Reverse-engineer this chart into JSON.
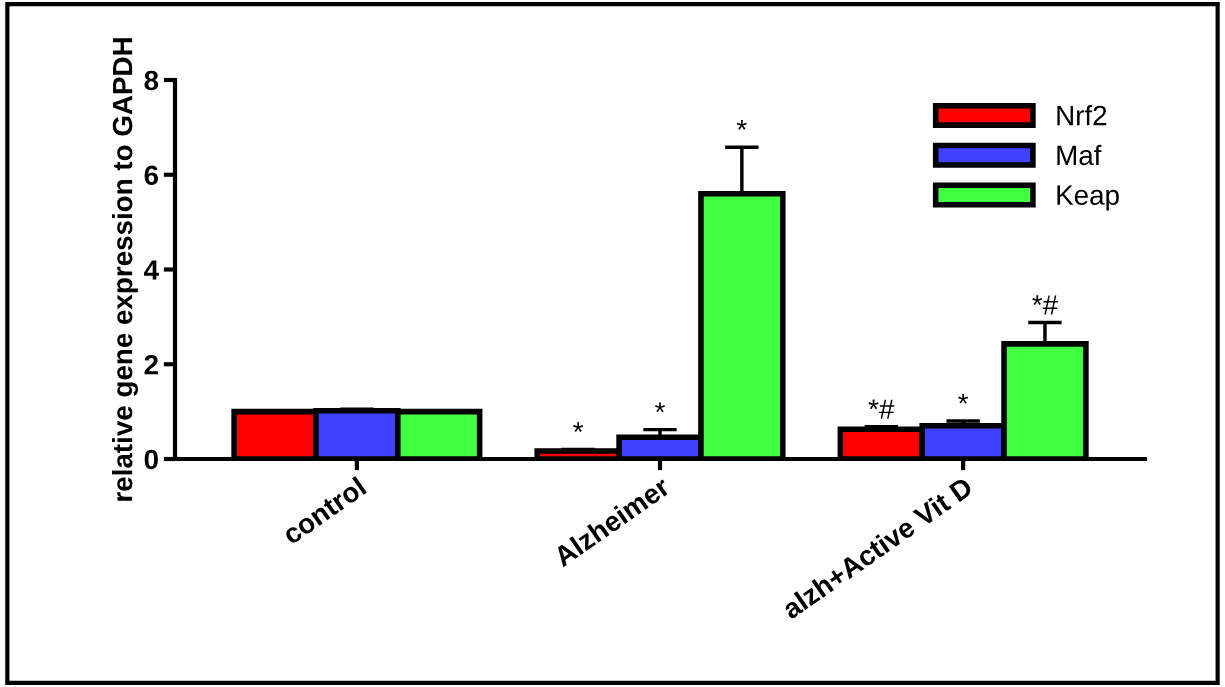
{
  "chart_data": {
    "type": "bar",
    "ylabel": "relative gene expression to GAPDH",
    "categories": [
      "control",
      "Alzheimer",
      "alzh+Active Vit D"
    ],
    "series": [
      {
        "name": "Nrf2",
        "color": "#ff0000",
        "values": [
          1.0,
          0.17,
          0.63
        ],
        "errors": [
          null,
          [
            0.17,
            0.2
          ],
          [
            0.63,
            0.68
          ]
        ],
        "value_labels": [
          null,
          "*",
          "*#"
        ]
      },
      {
        "name": "Maf",
        "color": "#4040ff",
        "values": [
          1.02,
          0.46,
          0.7
        ],
        "errors": [
          [
            1.02,
            1.05
          ],
          [
            0.46,
            0.62
          ],
          [
            0.7,
            0.8
          ]
        ],
        "value_labels": [
          null,
          "*",
          "*"
        ]
      },
      {
        "name": "Keap",
        "color": "#40ff40",
        "values": [
          1.0,
          5.6,
          2.43
        ],
        "errors": [
          null,
          [
            5.6,
            6.58
          ],
          [
            2.43,
            2.88
          ]
        ],
        "value_labels": [
          null,
          "*",
          "*#"
        ]
      }
    ],
    "ylim": [
      0,
      8
    ],
    "yticks": [
      0,
      2,
      4,
      6,
      8
    ],
    "legend": "top right",
    "grid": false
  }
}
